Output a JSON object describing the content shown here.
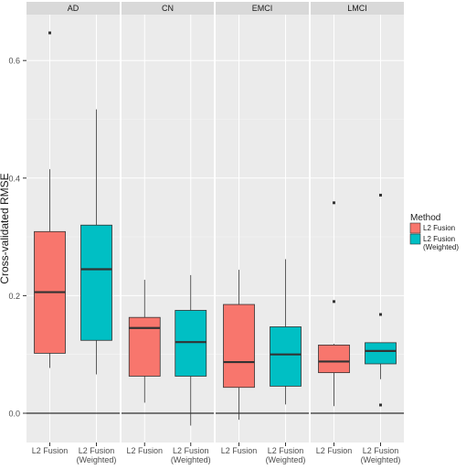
{
  "chart_data": {
    "type": "boxplot",
    "ylabel": "Cross-validated RMSE",
    "xlabel": "",
    "ylim": [
      -0.045,
      0.69
    ],
    "y_ticks": [
      0.0,
      0.2,
      0.4,
      0.6
    ],
    "y_tick_labels": [
      "0.0",
      "0.2",
      "0.4",
      "0.6"
    ],
    "zero_line": 0.0,
    "grid": true,
    "legend": {
      "title": "Method",
      "position": "right",
      "entries": [
        {
          "label_lines": [
            "L2 Fusion"
          ],
          "color": "#F8766D"
        },
        {
          "label_lines": [
            "L2 Fusion",
            "(Weighted)"
          ],
          "color": "#00BFC4"
        }
      ]
    },
    "category_labels": [
      [
        "L2 Fusion"
      ],
      [
        "L2 Fusion",
        "(Weighted)"
      ]
    ],
    "facets": [
      {
        "name": "AD",
        "boxes": [
          {
            "method": "L2 Fusion",
            "min": 0.077,
            "q1": 0.102,
            "median": 0.206,
            "q3": 0.309,
            "max": 0.415,
            "outliers": [
              0.647
            ]
          },
          {
            "method": "L2 Fusion (Weighted)",
            "min": 0.066,
            "q1": 0.124,
            "median": 0.245,
            "q3": 0.32,
            "max": 0.517,
            "outliers": []
          }
        ]
      },
      {
        "name": "CN",
        "boxes": [
          {
            "method": "L2 Fusion",
            "min": 0.018,
            "q1": 0.063,
            "median": 0.145,
            "q3": 0.163,
            "max": 0.227,
            "outliers": []
          },
          {
            "method": "L2 Fusion (Weighted)",
            "min": -0.021,
            "q1": 0.063,
            "median": 0.121,
            "q3": 0.175,
            "max": 0.235,
            "outliers": []
          }
        ]
      },
      {
        "name": "EMCI",
        "boxes": [
          {
            "method": "L2 Fusion",
            "min": -0.011,
            "q1": 0.044,
            "median": 0.087,
            "q3": 0.185,
            "max": 0.244,
            "outliers": []
          },
          {
            "method": "L2 Fusion (Weighted)",
            "min": 0.015,
            "q1": 0.046,
            "median": 0.1,
            "q3": 0.147,
            "max": 0.262,
            "outliers": []
          }
        ]
      },
      {
        "name": "LMCI",
        "boxes": [
          {
            "method": "L2 Fusion",
            "min": 0.012,
            "q1": 0.069,
            "median": 0.088,
            "q3": 0.116,
            "max": 0.118,
            "outliers": [
              0.19,
              0.358
            ]
          },
          {
            "method": "L2 Fusion (Weighted)",
            "min": 0.058,
            "q1": 0.084,
            "median": 0.106,
            "q3": 0.12,
            "max": 0.12,
            "outliers": [
              0.014,
              0.168,
              0.371
            ]
          }
        ]
      }
    ]
  },
  "colors": {
    "panel_bg": "#EBEBEB",
    "strip_bg": "#D9D9D9",
    "grid_major": "#FFFFFF",
    "text": "#1A1A1A",
    "axis_text": "#4D4D4D"
  }
}
